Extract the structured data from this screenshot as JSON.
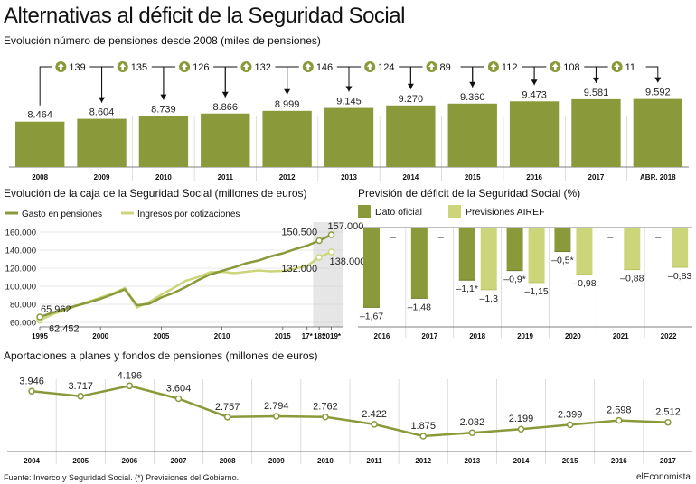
{
  "header": {
    "title": "Alternativas al déficit de la Seguridad Social",
    "subtitle": "Evolución número de pensiones desde 2008 (miles de pensiones)"
  },
  "colors": {
    "olive": "#8a9a3b",
    "light_green": "#cdd57a",
    "shade": "#e6e6e6",
    "grid": "#d0d0d0"
  },
  "icons": {
    "increase": "up-arrow-circle-icon"
  },
  "chart_data": [
    {
      "id": "pensiones",
      "type": "bar",
      "categories": [
        "2008",
        "2009",
        "2010",
        "2011",
        "2012",
        "2013",
        "2014",
        "2015",
        "2016",
        "2017",
        "ABR. 2018"
      ],
      "values": [
        8464,
        8604,
        8739,
        8866,
        8999,
        9145,
        9270,
        9360,
        9473,
        9581,
        9592
      ],
      "value_labels": [
        "8.464",
        "8.604",
        "8.739",
        "8.866",
        "8.999",
        "9.145",
        "9.270",
        "9.360",
        "9.473",
        "9.581",
        "9.592"
      ],
      "increments": [
        "139",
        "135",
        "126",
        "132",
        "146",
        "124",
        "89",
        "112",
        "108",
        "11"
      ]
    },
    {
      "id": "caja",
      "type": "line",
      "title": "Evolución de la caja de la Seguridad Social (millones de euros)",
      "series": [
        {
          "name": "Gasto en pensiones",
          "color": "#8a9a3b",
          "points": [
            [
              1995,
              65962
            ],
            [
              1996,
              70500
            ],
            [
              1997,
              74500
            ],
            [
              1998,
              78500
            ],
            [
              1999,
              82000
            ],
            [
              2000,
              86000
            ],
            [
              2001,
              91000
            ],
            [
              2002,
              96500
            ],
            [
              2003,
              79000
            ],
            [
              2004,
              80500
            ],
            [
              2005,
              87500
            ],
            [
              2006,
              92500
            ],
            [
              2007,
              99000
            ],
            [
              2008,
              106500
            ],
            [
              2009,
              113000
            ],
            [
              2010,
              117000
            ],
            [
              2011,
              121000
            ],
            [
              2012,
              125500
            ],
            [
              2013,
              128500
            ],
            [
              2014,
              133000
            ],
            [
              2015,
              136500
            ],
            [
              2016,
              141000
            ],
            [
              2017,
              145000
            ],
            [
              2018,
              150500
            ],
            [
              2019,
              157000
            ]
          ]
        },
        {
          "name": "Ingresos por cotizaciones",
          "color": "#cdd57a",
          "points": [
            [
              1995,
              62452
            ],
            [
              1996,
              68500
            ],
            [
              1997,
              73500
            ],
            [
              1998,
              78000
            ],
            [
              1999,
              83000
            ],
            [
              2000,
              87500
            ],
            [
              2001,
              92000
            ],
            [
              2002,
              98000
            ],
            [
              2003,
              76500
            ],
            [
              2004,
              82500
            ],
            [
              2005,
              90500
            ],
            [
              2006,
              98000
            ],
            [
              2007,
              106000
            ],
            [
              2008,
              110000
            ],
            [
              2009,
              115500
            ],
            [
              2010,
              116000
            ],
            [
              2011,
              114500
            ],
            [
              2012,
              116000
            ],
            [
              2013,
              117500
            ],
            [
              2014,
              116500
            ],
            [
              2015,
              117000
            ],
            [
              2016,
              119500
            ],
            [
              2017,
              122500
            ],
            [
              2018,
              132000
            ],
            [
              2019,
              138000
            ]
          ]
        }
      ],
      "annotations": [
        {
          "text": "65.962",
          "x": 1995,
          "y": 65962,
          "pos": "above"
        },
        {
          "text": "62.452",
          "x": 1995,
          "y": 62452,
          "pos": "below"
        },
        {
          "text": "150.500",
          "x": 2018,
          "y": 150500,
          "pos": "above-left"
        },
        {
          "text": "157.000",
          "x": 2019,
          "y": 157000,
          "pos": "above-right"
        },
        {
          "text": "132.000",
          "x": 2018,
          "y": 132000,
          "pos": "below-left"
        },
        {
          "text": "138.000",
          "x": 2019,
          "y": 138000,
          "pos": "below-right"
        }
      ],
      "yticks": [
        "60.000",
        "80.000",
        "100.000",
        "120.000",
        "140.000",
        "160.000"
      ],
      "ytick_values": [
        60000,
        80000,
        100000,
        120000,
        140000,
        160000
      ],
      "xticks": [
        "1995",
        "2000",
        "2005",
        "2010",
        "2015",
        "17*",
        "18*",
        "2019*"
      ],
      "xtick_values": [
        1995,
        2000,
        2005,
        2010,
        2015,
        2017,
        2018,
        2019
      ],
      "xlim": [
        1995,
        2020
      ],
      "ylim": [
        55000,
        165000
      ],
      "forecast_from": 2018
    },
    {
      "id": "deficit",
      "type": "bar",
      "title": "Previsión de déficit de la Seguridad Social (%)",
      "categories": [
        "2016",
        "2017",
        "2018",
        "2019",
        "2020",
        "2021",
        "2022"
      ],
      "series": [
        {
          "name": "Dato oficial",
          "color": "#8a9a3b",
          "values": [
            -1.67,
            -1.48,
            -1.1,
            -0.9,
            -0.5,
            null,
            null
          ],
          "labels": [
            "–1,67",
            "–1,48",
            "–1,1*",
            "–0,9*",
            "–0,5*",
            "–",
            "–"
          ]
        },
        {
          "name": "Previsiones AIREF",
          "color": "#cdd57a",
          "values": [
            null,
            null,
            -1.3,
            -1.15,
            -0.98,
            -0.88,
            -0.83
          ],
          "labels": [
            "–",
            "–",
            "–1,3",
            "–1,15",
            "–0,98",
            "–0,88",
            "–0,83"
          ]
        }
      ],
      "ylim": [
        -1.8,
        0
      ]
    },
    {
      "id": "aportaciones",
      "type": "line",
      "title": "Aportaciones a planes y fondos de pensiones (millones de euros)",
      "categories": [
        "2004",
        "2005",
        "2006",
        "2007",
        "2008",
        "2009",
        "2010",
        "2011",
        "2012",
        "2013",
        "2014",
        "2015",
        "2016",
        "2017"
      ],
      "values": [
        3946,
        3717,
        4196,
        3604,
        2757,
        2794,
        2762,
        2422,
        1875,
        2032,
        2199,
        2399,
        2598,
        2512
      ],
      "value_labels": [
        "3.946",
        "3.717",
        "4.196",
        "3.604",
        "2.757",
        "2.794",
        "2.762",
        "2.422",
        "1.875",
        "2.032",
        "2.199",
        "2.399",
        "2.598",
        "2.512"
      ],
      "ylim": [
        1500,
        4500
      ]
    }
  ],
  "footer": {
    "source": "Fuente: Inverco y Seguridad Social. (*) Previsiones del Gobierno.",
    "brand": "elEconomista"
  }
}
